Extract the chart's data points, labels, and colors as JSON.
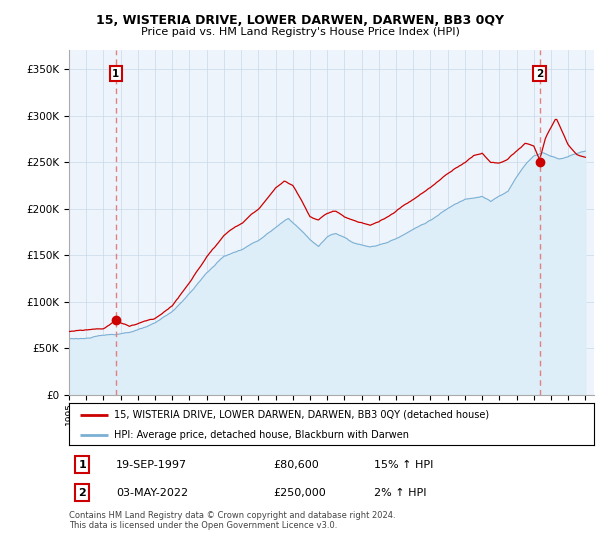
{
  "title": "15, WISTERIA DRIVE, LOWER DARWEN, DARWEN, BB3 0QY",
  "subtitle": "Price paid vs. HM Land Registry's House Price Index (HPI)",
  "ylim": [
    0,
    370000
  ],
  "yticks": [
    0,
    50000,
    100000,
    150000,
    200000,
    250000,
    300000,
    350000
  ],
  "ytick_labels": [
    "£0",
    "£50K",
    "£100K",
    "£150K",
    "£200K",
    "£250K",
    "£300K",
    "£350K"
  ],
  "sale1_date": 1997.72,
  "sale1_price": 80600,
  "sale1_label": "1",
  "sale2_date": 2022.34,
  "sale2_price": 250000,
  "sale2_label": "2",
  "legend_line1": "15, WISTERIA DRIVE, LOWER DARWEN, DARWEN, BB3 0QY (detached house)",
  "legend_line2": "HPI: Average price, detached house, Blackburn with Darwen",
  "table_row1": [
    "1",
    "19-SEP-1997",
    "£80,600",
    "15% ↑ HPI"
  ],
  "table_row2": [
    "2",
    "03-MAY-2022",
    "£250,000",
    "2% ↑ HPI"
  ],
  "footnote": "Contains HM Land Registry data © Crown copyright and database right 2024.\nThis data is licensed under the Open Government Licence v3.0.",
  "hpi_color": "#7bafd4",
  "hpi_fill_color": "#ddeef8",
  "price_color": "#cc0000",
  "sale_dot_color": "#cc0000",
  "vline_color": "#e08080",
  "background_color": "#ffffff",
  "chart_bg_color": "#eef4fb",
  "grid_color": "#c8d8e8"
}
